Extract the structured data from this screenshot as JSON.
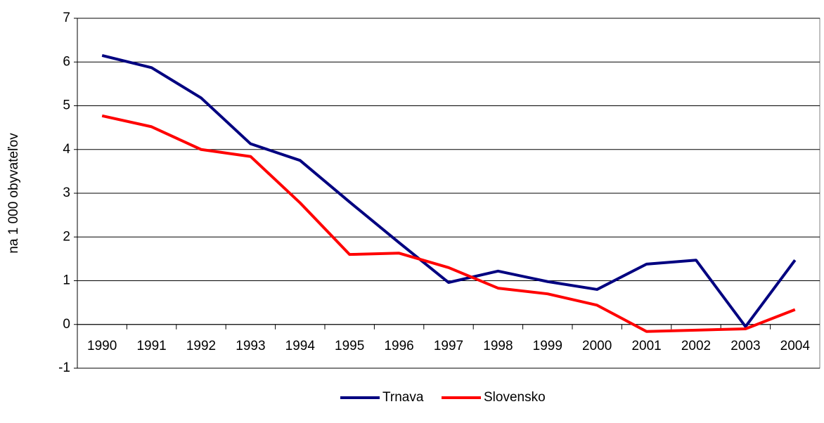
{
  "chart_data": {
    "type": "line",
    "y_label": "na 1 000 obyvateľov",
    "categories": [
      "1990",
      "1991",
      "1992",
      "1993",
      "1994",
      "1995",
      "1996",
      "1997",
      "1998",
      "1999",
      "2000",
      "2001",
      "2002",
      "2003",
      "2004"
    ],
    "series": [
      {
        "name": "Trnava",
        "color": "#000080",
        "values": [
          6.15,
          5.87,
          5.18,
          4.13,
          3.75,
          2.8,
          1.87,
          0.96,
          1.22,
          0.98,
          0.8,
          1.38,
          1.47,
          -0.05,
          1.47
        ]
      },
      {
        "name": "Slovensko",
        "color": "#ff0000",
        "values": [
          4.77,
          4.52,
          4.0,
          3.84,
          2.78,
          1.6,
          1.63,
          1.3,
          0.83,
          0.7,
          0.44,
          -0.16,
          -0.13,
          -0.1,
          0.34
        ]
      }
    ],
    "ylim": [
      -1,
      7
    ],
    "yticks": [
      -1,
      0,
      1,
      2,
      3,
      4,
      5,
      6,
      7
    ],
    "grid": true,
    "legend": "bottom"
  }
}
